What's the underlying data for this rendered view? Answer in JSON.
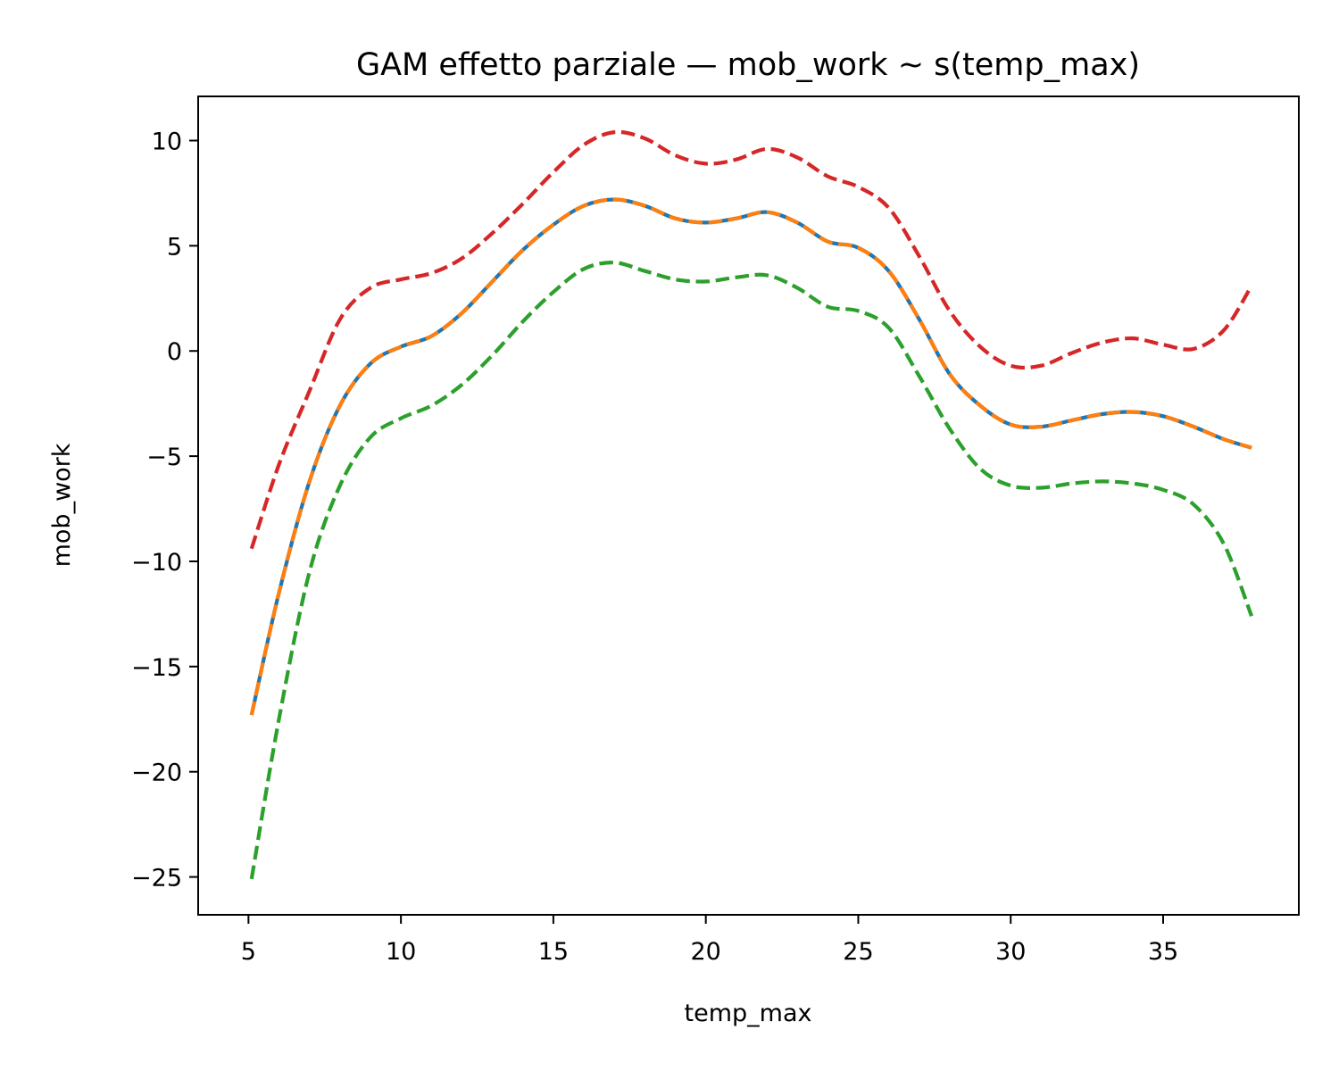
{
  "chart_data": {
    "type": "line",
    "title": "GAM effetto parziale — mob_work ~ s(temp_max)",
    "xlabel": "temp_max",
    "ylabel": "mob_work",
    "xlim": [
      3.35,
      39.45
    ],
    "ylim": [
      -26.8,
      12.1
    ],
    "xticks": [
      5,
      10,
      15,
      20,
      25,
      30,
      35
    ],
    "yticks": [
      10,
      5,
      0,
      -5,
      -10,
      -15,
      -20,
      -25
    ],
    "grid": false,
    "legend": null,
    "x": [
      5.1,
      6,
      7,
      8,
      9,
      10,
      11,
      12,
      13,
      14,
      15,
      16,
      17,
      18,
      19,
      20,
      21,
      22,
      23,
      24,
      25,
      26,
      27,
      28,
      29,
      30,
      31,
      32,
      33,
      34,
      35,
      36,
      37,
      37.9
    ],
    "series": [
      {
        "color": "#1f77b4",
        "dash": "solid",
        "values": [
          -17.3,
          -11.5,
          -6.2,
          -2.6,
          -0.6,
          0.2,
          0.7,
          1.8,
          3.3,
          4.8,
          6.0,
          6.9,
          7.2,
          6.9,
          6.3,
          6.1,
          6.3,
          6.6,
          6.1,
          5.2,
          4.9,
          3.8,
          1.5,
          -1.1,
          -2.6,
          -3.5,
          -3.6,
          -3.3,
          -3.0,
          -2.9,
          -3.1,
          -3.6,
          -4.2,
          -4.6
        ]
      },
      {
        "color": "#ff7f0e",
        "dash": "dashed",
        "values": [
          -17.3,
          -11.5,
          -6.2,
          -2.6,
          -0.6,
          0.2,
          0.7,
          1.8,
          3.3,
          4.8,
          6.0,
          6.9,
          7.2,
          6.9,
          6.3,
          6.1,
          6.3,
          6.6,
          6.1,
          5.2,
          4.9,
          3.8,
          1.5,
          -1.1,
          -2.6,
          -3.5,
          -3.6,
          -3.3,
          -3.0,
          -2.9,
          -3.1,
          -3.6,
          -4.2,
          -4.6
        ]
      },
      {
        "color": "#d62728",
        "dash": "dashed",
        "values": [
          -9.4,
          -5.4,
          -1.9,
          1.5,
          3.0,
          3.4,
          3.7,
          4.4,
          5.6,
          7.0,
          8.5,
          9.8,
          10.4,
          10.1,
          9.3,
          8.9,
          9.1,
          9.6,
          9.2,
          8.3,
          7.8,
          6.8,
          4.5,
          1.9,
          0.2,
          -0.7,
          -0.7,
          -0.1,
          0.4,
          0.6,
          0.3,
          0.1,
          1.0,
          3.1
        ]
      },
      {
        "color": "#2ca02c",
        "dash": "dashed",
        "values": [
          -25.1,
          -17.5,
          -10.5,
          -6.4,
          -4.1,
          -3.2,
          -2.6,
          -1.6,
          -0.2,
          1.4,
          2.8,
          3.9,
          4.2,
          3.8,
          3.4,
          3.3,
          3.5,
          3.6,
          3.0,
          2.1,
          1.9,
          1.1,
          -1.2,
          -3.7,
          -5.6,
          -6.4,
          -6.5,
          -6.3,
          -6.2,
          -6.3,
          -6.6,
          -7.3,
          -9.2,
          -12.6
        ]
      }
    ]
  }
}
